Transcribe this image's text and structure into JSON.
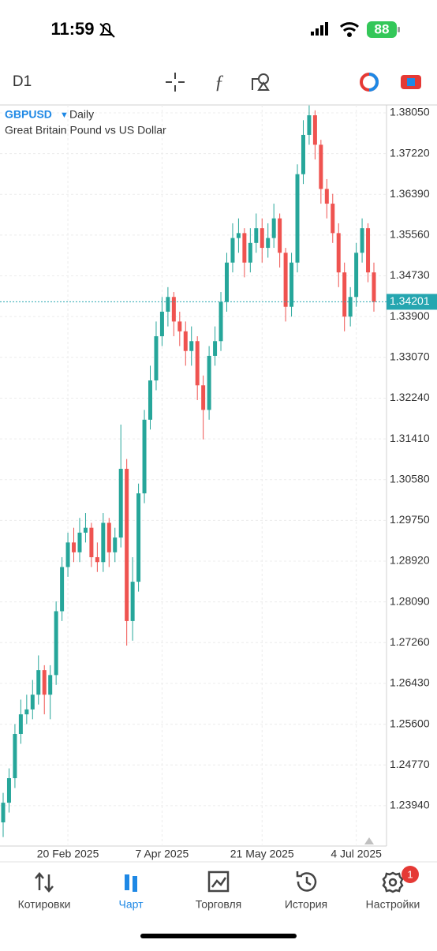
{
  "status_bar": {
    "time": "11:59",
    "battery": "88"
  },
  "toolbar": {
    "timeframe": "D1"
  },
  "chart_data": {
    "type": "candlestick",
    "title": "GBPUSD",
    "period": "Daily",
    "subtitle": "Great Britain Pound vs US Dollar",
    "categories": [
      null,
      null,
      null,
      null,
      null,
      null,
      null,
      null,
      null,
      null,
      null,
      "20 Feb 2025",
      null,
      null,
      null,
      null,
      null,
      null,
      null,
      null,
      null,
      null,
      null,
      null,
      null,
      null,
      null,
      "7 Apr 2025",
      null,
      null,
      null,
      null,
      null,
      null,
      null,
      null,
      null,
      null,
      null,
      null,
      null,
      null,
      null,
      null,
      "21 May 2025",
      null,
      null,
      null,
      null,
      null,
      null,
      null,
      null,
      null,
      null,
      null,
      null,
      null,
      null,
      null,
      "4 Jul 2025",
      null,
      null,
      null
    ],
    "open": [
      1.236,
      1.24,
      1.245,
      1.254,
      1.258,
      1.259,
      1.262,
      1.267,
      1.262,
      1.266,
      1.279,
      1.288,
      1.293,
      1.291,
      1.295,
      1.296,
      1.29,
      1.289,
      1.297,
      1.291,
      1.294,
      1.308,
      1.277,
      1.285,
      1.303,
      1.318,
      1.326,
      1.335,
      1.34,
      1.343,
      1.338,
      1.336,
      1.332,
      1.334,
      1.325,
      1.32,
      1.331,
      1.334,
      1.342,
      1.35,
      1.355,
      1.356,
      1.35,
      1.354,
      1.357,
      1.353,
      1.355,
      1.359,
      1.352,
      1.341,
      1.35,
      1.368,
      1.376,
      1.38,
      1.374,
      1.365,
      1.362,
      1.356,
      1.348,
      1.339,
      1.343,
      1.352,
      1.357,
      1.348
    ],
    "high": [
      1.242,
      1.247,
      1.256,
      1.261,
      1.262,
      1.265,
      1.27,
      1.268,
      1.268,
      1.281,
      1.29,
      1.295,
      1.296,
      1.298,
      1.299,
      1.297,
      1.293,
      1.299,
      1.298,
      1.296,
      1.317,
      1.31,
      1.29,
      1.305,
      1.32,
      1.329,
      1.338,
      1.343,
      1.345,
      1.344,
      1.34,
      1.338,
      1.337,
      1.335,
      1.327,
      1.333,
      1.337,
      1.344,
      1.352,
      1.358,
      1.359,
      1.357,
      1.357,
      1.36,
      1.359,
      1.358,
      1.362,
      1.36,
      1.353,
      1.352,
      1.37,
      1.379,
      1.382,
      1.381,
      1.375,
      1.367,
      1.364,
      1.358,
      1.35,
      1.345,
      1.354,
      1.359,
      1.358,
      1.35
    ],
    "low": [
      1.233,
      1.238,
      1.243,
      1.252,
      1.256,
      1.257,
      1.26,
      1.258,
      1.257,
      1.264,
      1.277,
      1.286,
      1.289,
      1.289,
      1.293,
      1.288,
      1.287,
      1.287,
      1.288,
      1.289,
      1.292,
      1.272,
      1.273,
      1.283,
      1.301,
      1.316,
      1.324,
      1.333,
      1.337,
      1.335,
      1.333,
      1.329,
      1.329,
      1.322,
      1.314,
      1.318,
      1.329,
      1.332,
      1.34,
      1.348,
      1.352,
      1.347,
      1.348,
      1.352,
      1.35,
      1.351,
      1.353,
      1.349,
      1.338,
      1.339,
      1.348,
      1.366,
      1.374,
      1.371,
      1.362,
      1.359,
      1.354,
      1.345,
      1.336,
      1.337,
      1.341,
      1.35,
      1.346,
      1.34
    ],
    "close": [
      1.24,
      1.245,
      1.254,
      1.258,
      1.259,
      1.262,
      1.267,
      1.262,
      1.266,
      1.279,
      1.288,
      1.293,
      1.291,
      1.295,
      1.296,
      1.29,
      1.289,
      1.297,
      1.291,
      1.294,
      1.308,
      1.277,
      1.285,
      1.303,
      1.318,
      1.326,
      1.335,
      1.34,
      1.343,
      1.338,
      1.336,
      1.332,
      1.334,
      1.325,
      1.32,
      1.331,
      1.334,
      1.342,
      1.35,
      1.355,
      1.356,
      1.35,
      1.354,
      1.357,
      1.353,
      1.355,
      1.359,
      1.352,
      1.341,
      1.35,
      1.368,
      1.376,
      1.38,
      1.374,
      1.365,
      1.362,
      1.356,
      1.348,
      1.339,
      1.343,
      1.352,
      1.357,
      1.348,
      1.342
    ],
    "ylim": [
      1.2315,
      1.3821
    ],
    "yticks": [
      {
        "value": 1.3805,
        "label": "1.38050"
      },
      {
        "value": 1.3722,
        "label": "1.37220"
      },
      {
        "value": 1.3639,
        "label": "1.36390"
      },
      {
        "value": 1.3556,
        "label": "1.35560"
      },
      {
        "value": 1.3473,
        "label": "1.34730"
      },
      {
        "value": 1.339,
        "label": "1.33900"
      },
      {
        "value": 1.3307,
        "label": "1.33070"
      },
      {
        "value": 1.3224,
        "label": "1.32240"
      },
      {
        "value": 1.3141,
        "label": "1.31410"
      },
      {
        "value": 1.3058,
        "label": "1.30580"
      },
      {
        "value": 1.2975,
        "label": "1.29750"
      },
      {
        "value": 1.2892,
        "label": "1.28920"
      },
      {
        "value": 1.2809,
        "label": "1.28090"
      },
      {
        "value": 1.2726,
        "label": "1.27260"
      },
      {
        "value": 1.2643,
        "label": "1.26430"
      },
      {
        "value": 1.256,
        "label": "1.25600"
      },
      {
        "value": 1.2477,
        "label": "1.24770"
      },
      {
        "value": 1.2394,
        "label": "1.23940"
      }
    ],
    "current_price": 1.34201,
    "up_color": "#26a69a",
    "down_color": "#ef5350",
    "grid": true
  },
  "nav": {
    "items": [
      "Котировки",
      "Чарт",
      "Торговля",
      "История",
      "Настройки"
    ],
    "active": 1,
    "badge": 1
  }
}
